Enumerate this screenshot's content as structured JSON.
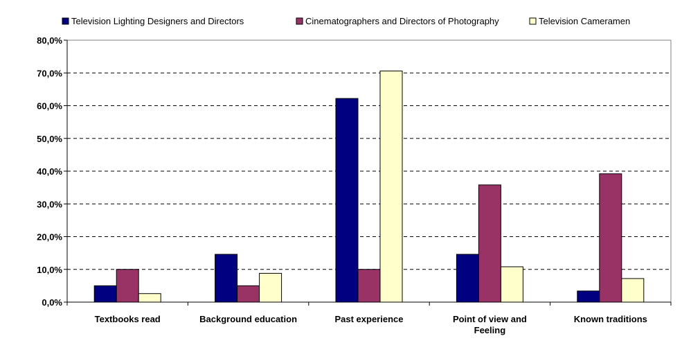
{
  "chart_data": {
    "type": "bar",
    "categories": [
      [
        "Textbooks read"
      ],
      [
        "Background education"
      ],
      [
        "Past experience"
      ],
      [
        "Point of view and",
        "Feeling"
      ],
      [
        "Known traditions"
      ]
    ],
    "series": [
      {
        "name": "Television Lighting Designers and Directors",
        "color": "#000080",
        "values": [
          5.0,
          14.6,
          62.2,
          14.6,
          3.4
        ]
      },
      {
        "name": "Cinematographers and Directors of Photography",
        "color": "#993366",
        "values": [
          10.0,
          5.0,
          10.0,
          35.8,
          39.2
        ]
      },
      {
        "name": "Television Cameramen",
        "color": "#FFFFCC",
        "values": [
          2.6,
          8.8,
          70.6,
          10.8,
          7.2
        ]
      }
    ],
    "ylim": [
      0,
      80
    ],
    "yticks": [
      "0,0%",
      "10,0%",
      "20,0%",
      "30,0%",
      "40,0%",
      "50,0%",
      "60,0%",
      "70,0%",
      "80,0%"
    ],
    "ytick_values": [
      0,
      10,
      20,
      30,
      40,
      50,
      60,
      70,
      80
    ],
    "grid": "horizontal dashed",
    "legend_position": "top",
    "title": "",
    "xlabel": "",
    "ylabel": ""
  }
}
